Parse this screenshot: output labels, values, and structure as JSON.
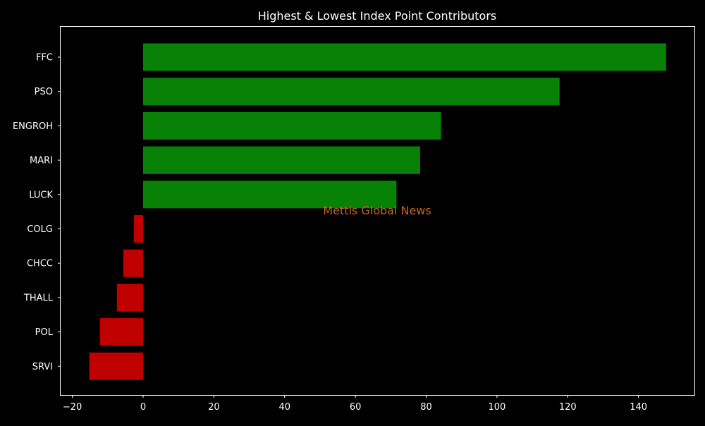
{
  "chart_data": {
    "type": "bar",
    "orientation": "horizontal",
    "title": "Highest & Lowest Index Point Contributors",
    "xlabel": "",
    "ylabel": "",
    "watermark": "Mettis Global News",
    "categories": [
      "FFC",
      "PSO",
      "ENGROH",
      "MARI",
      "LUCK",
      "COLG",
      "CHCC",
      "THALL",
      "POL",
      "SRVI"
    ],
    "values": [
      147.8,
      117.7,
      84.2,
      78.3,
      71.6,
      -2.6,
      -5.6,
      -7.4,
      -12.2,
      -15.2
    ],
    "xlim": [
      -23.3,
      155.8
    ],
    "xticks": [
      -20,
      0,
      20,
      40,
      60,
      80,
      100,
      120,
      140
    ],
    "xtick_labels": [
      "−20",
      "0",
      "20",
      "40",
      "60",
      "80",
      "100",
      "120",
      "140"
    ],
    "grid": false,
    "colors": {
      "background": "#000000",
      "positive": "#078207",
      "negative": "#c00000",
      "text": "#ffffff",
      "axes": "#ffffff",
      "watermark": "#c8641e"
    }
  }
}
